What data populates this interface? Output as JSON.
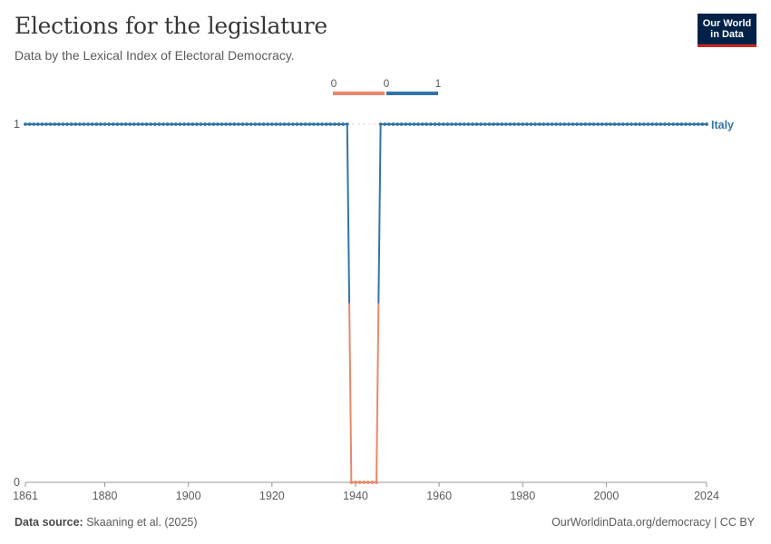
{
  "header": {
    "title": "Elections for the legislature",
    "subtitle": "Data by the Lexical Index of Electoral Democracy."
  },
  "logo": {
    "line1": "Our World",
    "line2": "in Data"
  },
  "legend": {
    "low_label": "0",
    "mid_label": "0",
    "high_label": "1",
    "low_color": "#e9886a",
    "high_color": "#3174a9"
  },
  "footer": {
    "source_label": "Data source:",
    "source_text": "Skaaning et al. (2025)",
    "right_text": "OurWorldinData.org/democracy | CC BY"
  },
  "chart_data": {
    "type": "line",
    "title": "Elections for the legislature",
    "xlim": [
      1861,
      2024
    ],
    "ylim": [
      0,
      1
    ],
    "x_ticks": [
      1861,
      1880,
      1900,
      1920,
      1940,
      1960,
      1980,
      2000,
      2024
    ],
    "y_ticks": [
      0,
      1
    ],
    "series": [
      {
        "name": "Italy",
        "start": 1861,
        "end": 2024,
        "zero_years": [
          1939,
          1940,
          1941,
          1942,
          1943,
          1944,
          1945
        ],
        "default_value": 1
      }
    ],
    "colors": {
      "one": "#3174a9",
      "zero": "#e9886a"
    }
  }
}
